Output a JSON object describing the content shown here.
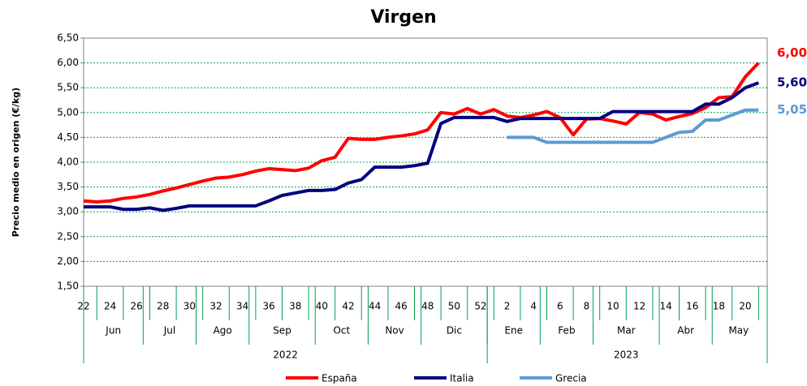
{
  "chart_data": {
    "type": "line",
    "title": "Virgen",
    "y_label": "Precio medio en origen (€/kg)",
    "categories": [
      22,
      null,
      24,
      null,
      26,
      null,
      28,
      null,
      30,
      null,
      32,
      null,
      34,
      null,
      36,
      null,
      38,
      null,
      40,
      null,
      42,
      null,
      44,
      null,
      46,
      null,
      48,
      null,
      50,
      null,
      52,
      null,
      2,
      null,
      4,
      null,
      6,
      null,
      8,
      null,
      10,
      null,
      12,
      null,
      14,
      null,
      16,
      null,
      18,
      null,
      20,
      null
    ],
    "months": [
      {
        "label": "Jun",
        "count": 5
      },
      {
        "label": "Jul",
        "count": 4
      },
      {
        "label": "Ago",
        "count": 4
      },
      {
        "label": "Sep",
        "count": 5
      },
      {
        "label": "Oct",
        "count": 4
      },
      {
        "label": "Nov",
        "count": 4
      },
      {
        "label": "Dic",
        "count": 5
      },
      {
        "label": "Ene",
        "count": 4
      },
      {
        "label": "Feb",
        "count": 4
      },
      {
        "label": "Mar",
        "count": 5
      },
      {
        "label": "Abr",
        "count": 4
      },
      {
        "label": "May",
        "count": 4
      }
    ],
    "years": [
      {
        "label": "2022",
        "count": 31
      },
      {
        "label": "2023",
        "count": 21
      }
    ],
    "series": [
      {
        "name": "España",
        "color": "#ff0000",
        "last_label": "6,00",
        "values": [
          3.22,
          3.2,
          3.22,
          3.27,
          3.3,
          3.35,
          3.42,
          3.48,
          3.55,
          3.62,
          3.68,
          3.7,
          3.75,
          3.82,
          3.87,
          3.85,
          3.83,
          3.88,
          4.03,
          4.1,
          4.48,
          4.46,
          4.46,
          4.5,
          4.53,
          4.57,
          4.65,
          5.0,
          4.97,
          5.08,
          4.97,
          5.06,
          4.93,
          4.9,
          4.95,
          5.02,
          4.9,
          4.55,
          4.87,
          4.88,
          4.83,
          4.77,
          5.0,
          4.97,
          4.85,
          4.92,
          4.98,
          5.1,
          5.3,
          5.32,
          5.72,
          6.0
        ]
      },
      {
        "name": "Italia",
        "color": "#000080",
        "last_label": "5,60",
        "values": [
          3.1,
          3.1,
          3.1,
          3.05,
          3.05,
          3.08,
          3.03,
          3.07,
          3.12,
          3.12,
          3.12,
          3.12,
          3.12,
          3.12,
          3.22,
          3.33,
          3.38,
          3.43,
          3.43,
          3.45,
          3.58,
          3.65,
          3.9,
          3.9,
          3.9,
          3.93,
          3.98,
          4.78,
          4.9,
          4.9,
          4.9,
          4.9,
          4.82,
          4.88,
          4.88,
          4.88,
          4.88,
          4.88,
          4.88,
          4.88,
          5.02,
          5.02,
          5.02,
          5.02,
          5.02,
          5.02,
          5.02,
          5.17,
          5.17,
          5.3,
          5.5,
          5.6
        ]
      },
      {
        "name": "Grecia",
        "color": "#5b9bd5",
        "last_label": "5,05",
        "values": [
          null,
          null,
          null,
          null,
          null,
          null,
          null,
          null,
          null,
          null,
          null,
          null,
          null,
          null,
          null,
          null,
          null,
          null,
          null,
          null,
          null,
          null,
          null,
          null,
          null,
          null,
          null,
          null,
          null,
          null,
          null,
          null,
          4.5,
          4.5,
          4.5,
          4.4,
          4.4,
          4.4,
          4.4,
          4.4,
          4.4,
          4.4,
          4.4,
          4.4,
          4.5,
          4.6,
          4.62,
          4.85,
          4.85,
          4.95,
          5.05,
          5.05
        ]
      }
    ],
    "ylim": [
      1.5,
      6.5
    ],
    "yticks": [
      {
        "value": 1.5,
        "label": "1,50"
      },
      {
        "value": 2,
        "label": "2,00"
      },
      {
        "value": 2.5,
        "label": "2,50"
      },
      {
        "value": 3,
        "label": "3,00"
      },
      {
        "value": 3.5,
        "label": "3,50"
      },
      {
        "value": 4,
        "label": "4,00"
      },
      {
        "value": 4.5,
        "label": "4,50"
      },
      {
        "value": 5,
        "label": "5,00"
      },
      {
        "value": 5.5,
        "label": "5,50"
      },
      {
        "value": 6,
        "label": "6,00"
      },
      {
        "value": 6.5,
        "label": "6,50"
      }
    ],
    "grid": true
  }
}
